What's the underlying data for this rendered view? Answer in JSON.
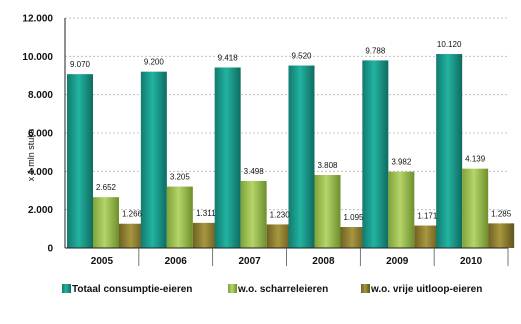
{
  "chart_data": {
    "type": "bar",
    "title": "",
    "xlabel": "",
    "ylabel": "x 1 mln stuks",
    "ylim": [
      0,
      12000
    ],
    "yticks": [
      0,
      2000,
      4000,
      6000,
      8000,
      10000,
      12000
    ],
    "ytick_labels": [
      "0",
      "2.000",
      "4.000",
      "6.000",
      "8.000",
      "10.000",
      "12.000"
    ],
    "grid": "horizontal dashed",
    "legend_position": "bottom",
    "categories": [
      "2005",
      "2006",
      "2007",
      "2008",
      "2009",
      "2010"
    ],
    "series": [
      {
        "name": "Totaal consumptie-eieren",
        "values": [
          9070,
          9200,
          9418,
          9520,
          9788,
          10120
        ],
        "labels": [
          "9.070",
          "9.200",
          "9.418",
          "9.520",
          "9.788",
          "10.120"
        ],
        "color": "#1f9e8f"
      },
      {
        "name": "w.o. scharreleieren",
        "values": [
          2652,
          3205,
          3498,
          3808,
          3982,
          4139
        ],
        "labels": [
          "2.652",
          "3.205",
          "3.498",
          "3.808",
          "3.982",
          "4.139"
        ],
        "color": "#9bbf4a"
      },
      {
        "name": "w.o. vrije uitloop-eieren",
        "values": [
          1266,
          1311,
          1230,
          1095,
          1171,
          1285
        ],
        "labels": [
          "1.266",
          "1.311",
          "1.230",
          "1.095",
          "1.171",
          "1.285"
        ],
        "color": "#8a7a2c"
      }
    ]
  }
}
